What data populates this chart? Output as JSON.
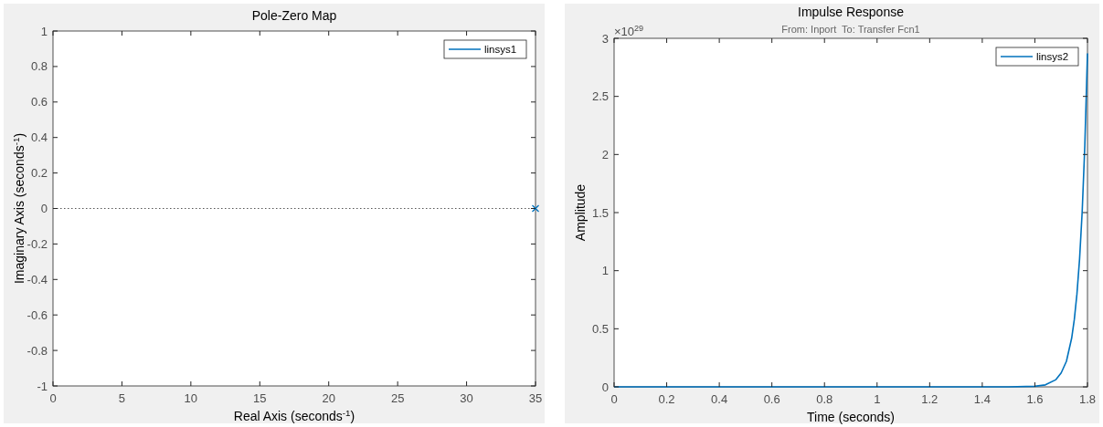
{
  "chart_data": [
    {
      "type": "scatter",
      "title": "Pole-Zero Map",
      "xlabel": "Real Axis (seconds$^{-1}$)",
      "ylabel": "Imaginary Axis (seconds$^{-1}$)",
      "series": [
        {
          "name": "linsys1",
          "color": "#0072bd",
          "x": [
            35
          ],
          "values": [
            0
          ]
        }
      ],
      "marker": "cross",
      "xlim": [
        0,
        35
      ],
      "ylim": [
        -1,
        1
      ],
      "xticks": [
        0,
        5,
        10,
        15,
        20,
        25,
        30,
        35
      ],
      "yticks": [
        -1,
        -0.8,
        -0.6,
        -0.4,
        -0.2,
        0,
        0.2,
        0.4,
        0.6,
        0.8,
        1
      ],
      "ref_lines": [
        {
          "axis": "y",
          "value": 0,
          "label": null,
          "color": "#555555",
          "line_style": "dotted"
        }
      ],
      "legend": "top right",
      "grid": false
    },
    {
      "type": "line",
      "title": "Impulse Response",
      "subtitle": "From: Inport  To: Transfer Fcn1",
      "xlabel": "Time (seconds)",
      "ylabel": "Amplitude",
      "annotations": [
        "×10$^{29}$"
      ],
      "series": [
        {
          "name": "linsys2",
          "color": "#0072bd",
          "x": [
            0,
            0.2,
            0.4,
            0.6,
            0.8,
            1,
            1.2,
            1.4,
            1.5,
            1.6,
            1.64,
            1.68,
            1.7,
            1.72,
            1.74,
            1.75,
            1.76,
            1.77,
            1.78,
            1.79,
            1.8
          ],
          "values": [
            0,
            0,
            0,
            0,
            0,
            0,
            0,
            0,
            0,
            0.005,
            0.017,
            0.062,
            0.12,
            0.22,
            0.42,
            0.58,
            0.8,
            1.1,
            1.51,
            2.08,
            2.87
          ]
        }
      ],
      "xlim": [
        0,
        1.8
      ],
      "ylim": [
        0,
        3
      ],
      "xticks": [
        0,
        0.2,
        0.4,
        0.6,
        0.8,
        1,
        1.2,
        1.4,
        1.6,
        1.8
      ],
      "yticks": [
        0,
        0.5,
        1,
        1.5,
        2,
        2.5,
        3
      ],
      "legend": "top right",
      "grid": false
    }
  ]
}
